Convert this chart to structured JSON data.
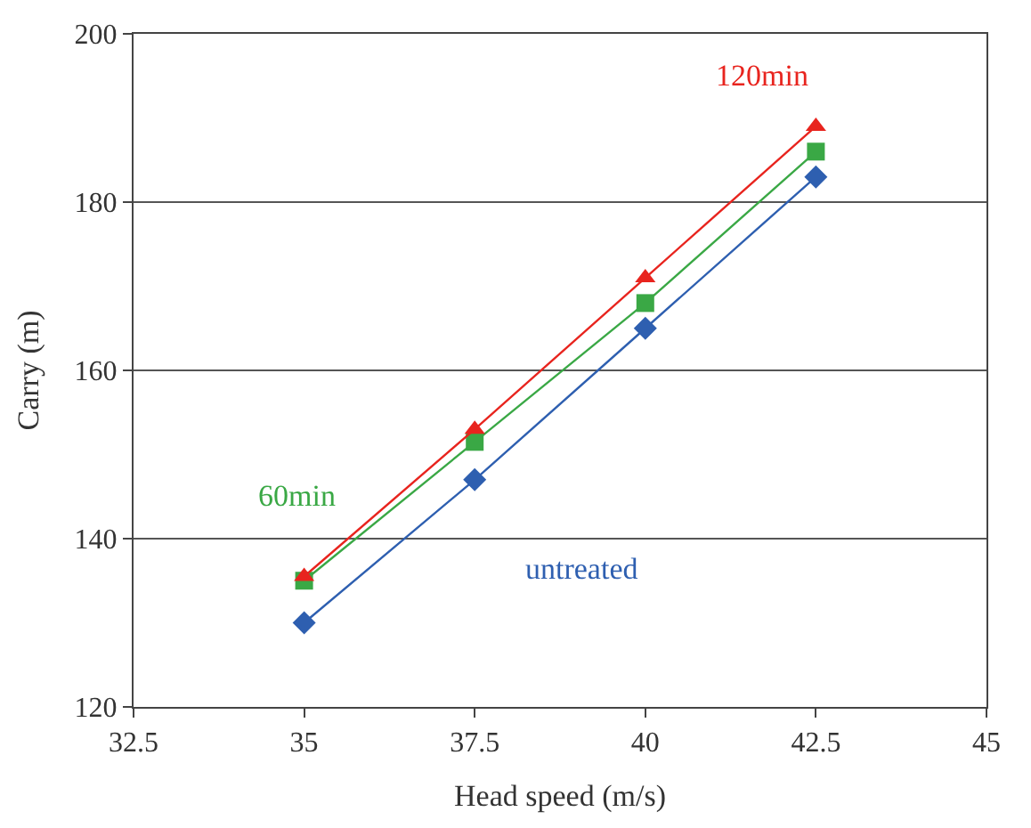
{
  "chart_data": {
    "type": "line",
    "xlabel": "Head speed (m/s)",
    "ylabel": "Carry (m)",
    "x": [
      35,
      37.5,
      40,
      42.5
    ],
    "series": [
      {
        "name": "untreated",
        "color": "#2e5fb0",
        "marker": "diamond",
        "values": [
          130,
          147,
          165,
          183
        ]
      },
      {
        "name": "60min",
        "color": "#3aa845",
        "marker": "square",
        "values": [
          135,
          151.5,
          168,
          186
        ]
      },
      {
        "name": "120min",
        "color": "#e8241e",
        "marker": "triangle",
        "values": [
          135.5,
          153,
          171,
          189
        ]
      }
    ],
    "xlim": [
      32.5,
      45
    ],
    "xticks": [
      32.5,
      35,
      37.5,
      40,
      42.5,
      45
    ],
    "ylim": [
      120,
      200
    ],
    "yticks": [
      120,
      140,
      160,
      180,
      200
    ],
    "grid": "y",
    "legend": false
  }
}
